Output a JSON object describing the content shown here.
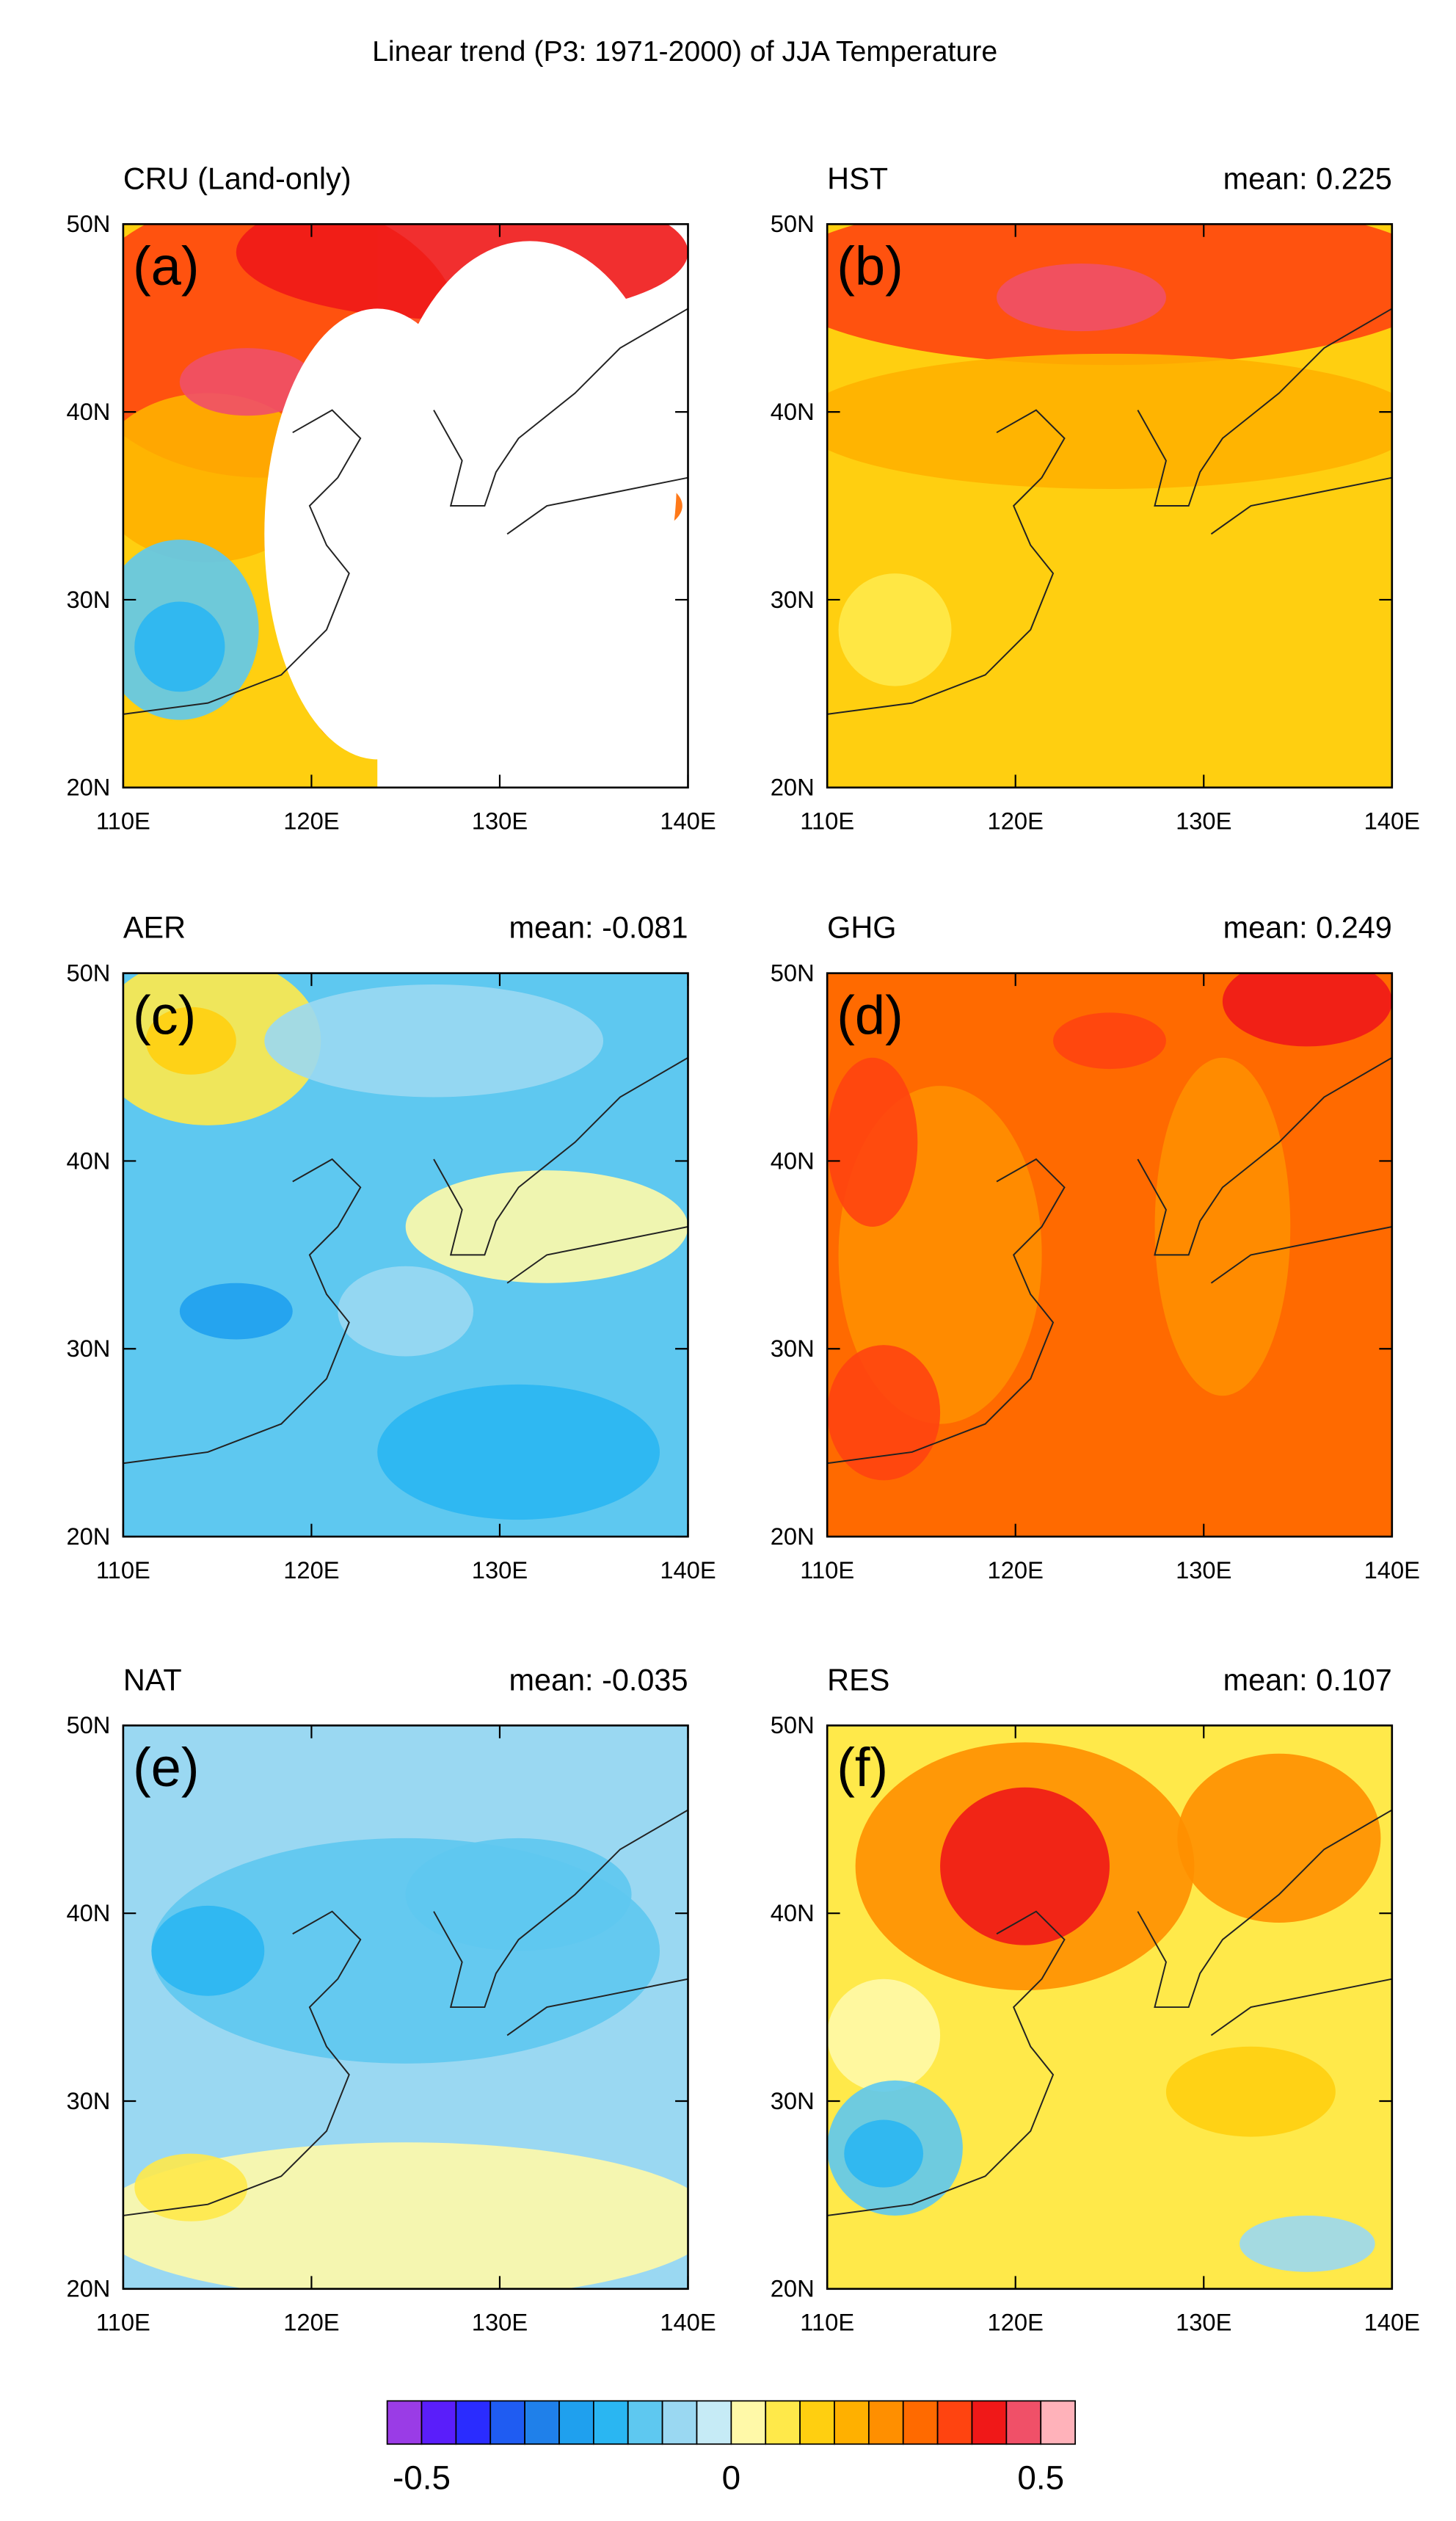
{
  "title": "Linear trend (P3: 1971-2000) of JJA Temperature",
  "panels": [
    {
      "name": "CRU (Land-only)",
      "letter": "(a)"
    },
    {
      "name": "HST",
      "letter": "(b)",
      "mean": "mean: 0.225"
    },
    {
      "name": "AER",
      "letter": "(c)",
      "mean": "mean: -0.081"
    },
    {
      "name": "GHG",
      "letter": "(d)",
      "mean": "mean: 0.249"
    },
    {
      "name": "NAT",
      "letter": "(e)",
      "mean": "mean: -0.035"
    },
    {
      "name": "RES",
      "letter": "(f)",
      "mean": "mean: 0.107"
    }
  ],
  "axes": {
    "lat_labels": [
      "50N",
      "40N",
      "30N",
      "20N"
    ],
    "lon_labels": [
      "110E",
      "120E",
      "130E",
      "140E"
    ]
  },
  "colorbar": {
    "colors": [
      "#9a3ce6",
      "#5a1efa",
      "#2a2cff",
      "#1f5cf2",
      "#1f80ea",
      "#1fa0ee",
      "#2ab6f2",
      "#5ec8f0",
      "#9ad8f2",
      "#c6ebf6",
      "#fff9a8",
      "#ffe94a",
      "#ffcf10",
      "#ffb000",
      "#ff8f00",
      "#ff6a00",
      "#ff4410",
      "#f01818",
      "#f05068",
      "#ffb2ba"
    ],
    "labels": [
      "-0.5",
      "0",
      "0.5"
    ]
  }
}
